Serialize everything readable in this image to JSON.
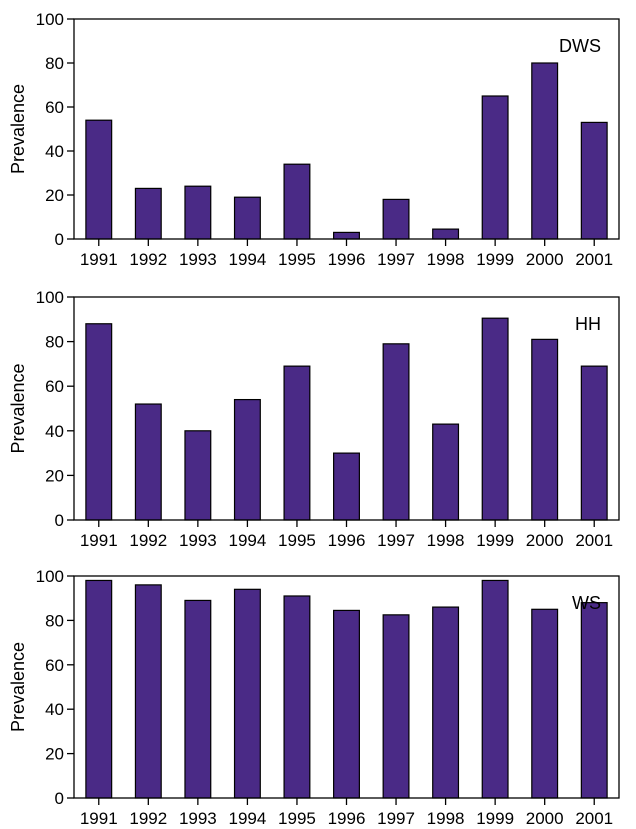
{
  "colors": {
    "bar": "#4a2a86",
    "bar_stroke": "#000000",
    "axis": "#000000"
  },
  "chart_data": [
    {
      "type": "bar",
      "panel_label": "DWS",
      "ylabel": "Prevalence",
      "xlabel": "",
      "ylim": [
        0,
        100
      ],
      "yticks": [
        "0",
        "20",
        "40",
        "60",
        "80",
        "100"
      ],
      "categories": [
        "1991",
        "1992",
        "1993",
        "1994",
        "1995",
        "1996",
        "1997",
        "1998",
        "1999",
        "2000",
        "2001"
      ],
      "values": [
        54,
        23,
        24,
        19,
        34,
        3,
        18,
        4.5,
        65,
        80,
        53
      ],
      "grid": false,
      "legend": "none"
    },
    {
      "type": "bar",
      "panel_label": "HH",
      "ylabel": "Prevalence",
      "xlabel": "",
      "ylim": [
        0,
        100
      ],
      "yticks": [
        "0",
        "20",
        "40",
        "60",
        "80",
        "100"
      ],
      "categories": [
        "1991",
        "1992",
        "1993",
        "1994",
        "1995",
        "1996",
        "1997",
        "1998",
        "1999",
        "2000",
        "2001"
      ],
      "values": [
        88,
        52,
        40,
        54,
        69,
        30,
        79,
        43,
        90.5,
        81,
        69
      ],
      "grid": false,
      "legend": "none"
    },
    {
      "type": "bar",
      "panel_label": "WS",
      "ylabel": "Prevalence",
      "xlabel": "",
      "ylim": [
        0,
        100
      ],
      "yticks": [
        "0",
        "20",
        "40",
        "60",
        "80",
        "100"
      ],
      "categories": [
        "1991",
        "1992",
        "1993",
        "1994",
        "1995",
        "1996",
        "1997",
        "1998",
        "1999",
        "2000",
        "2001"
      ],
      "values": [
        98,
        96,
        89,
        94,
        91,
        84.5,
        82.5,
        86,
        98,
        85,
        88
      ],
      "grid": false,
      "legend": "none"
    }
  ]
}
